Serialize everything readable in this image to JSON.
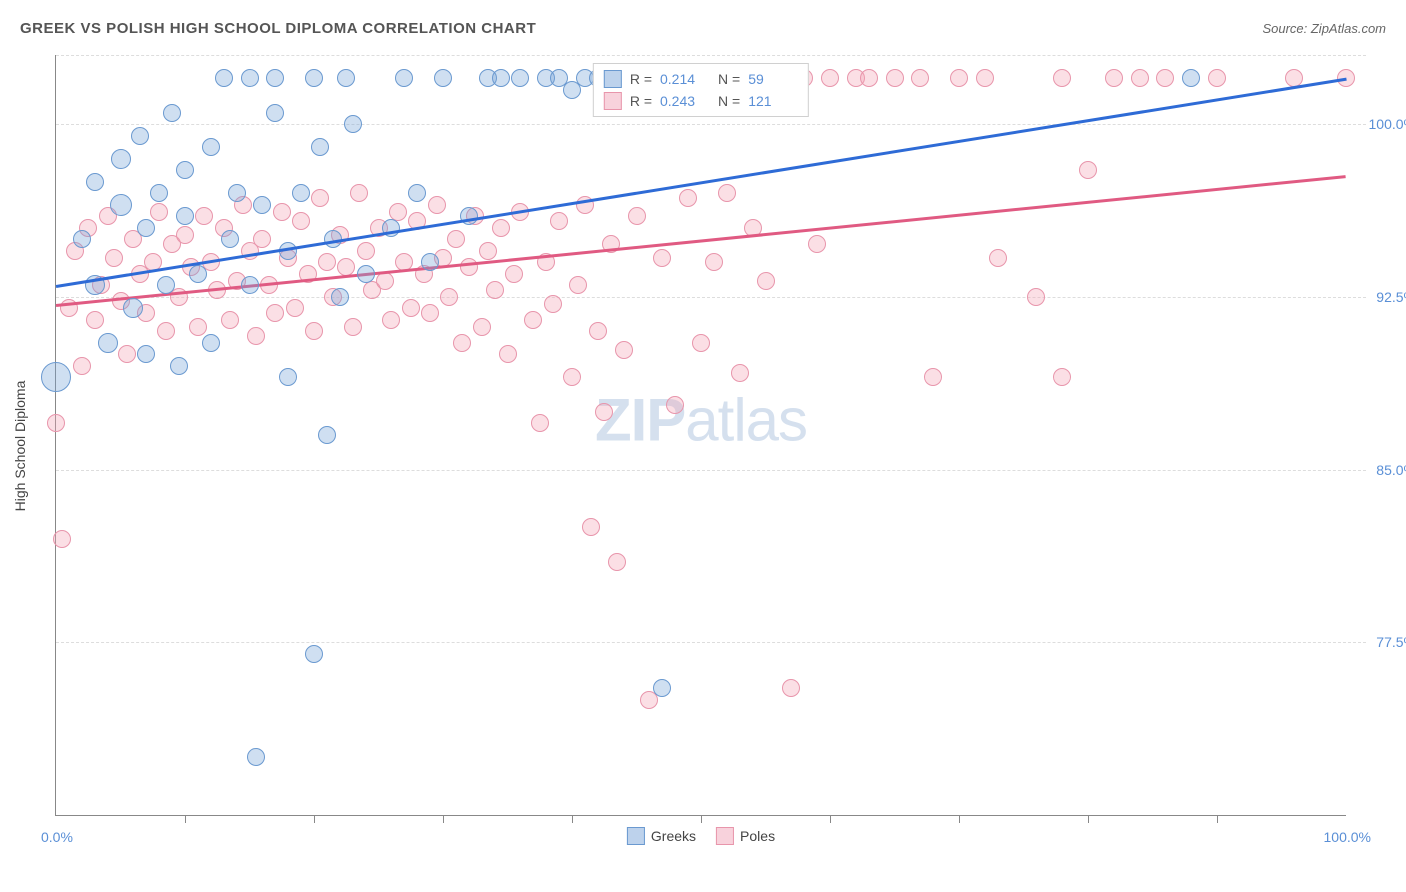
{
  "title": "GREEK VS POLISH HIGH SCHOOL DIPLOMA CORRELATION CHART",
  "source": "Source: ZipAtlas.com",
  "ylabel": "High School Diploma",
  "watermark_a": "ZIP",
  "watermark_b": "atlas",
  "xlim": [
    0,
    100
  ],
  "ylim": [
    70,
    103
  ],
  "x_axis_label_min": "0.0%",
  "x_axis_label_max": "100.0%",
  "y_ticks": [
    {
      "v": 77.5,
      "label": "77.5%"
    },
    {
      "v": 85.0,
      "label": "85.0%"
    },
    {
      "v": 92.5,
      "label": "92.5%"
    },
    {
      "v": 100.0,
      "label": "100.0%"
    }
  ],
  "x_tick_positions": [
    10,
    20,
    30,
    40,
    50,
    60,
    70,
    80,
    90
  ],
  "background_color": "#ffffff",
  "grid_color": "#dddddd",
  "axis_color": "#888888",
  "label_color": "#5a8fd6",
  "series": {
    "greeks": {
      "label": "Greeks",
      "fill": "rgba(118,162,216,0.35)",
      "stroke": "#6a99d0",
      "swatch_fill": "#bdd2ec",
      "swatch_stroke": "#6a99d0",
      "R": "0.214",
      "N": "59",
      "trend": {
        "x1": 0,
        "y1": 93.0,
        "x2": 100,
        "y2": 102.0,
        "color": "#2e6bd6",
        "width": 2.5
      },
      "points": [
        {
          "x": 0,
          "y": 89,
          "r": 14
        },
        {
          "x": 2,
          "y": 95,
          "r": 8
        },
        {
          "x": 3,
          "y": 93,
          "r": 9
        },
        {
          "x": 3,
          "y": 97.5,
          "r": 8
        },
        {
          "x": 4,
          "y": 90.5,
          "r": 9
        },
        {
          "x": 5,
          "y": 96.5,
          "r": 10
        },
        {
          "x": 5,
          "y": 98.5,
          "r": 9
        },
        {
          "x": 6,
          "y": 92,
          "r": 9
        },
        {
          "x": 6.5,
          "y": 99.5,
          "r": 8
        },
        {
          "x": 7,
          "y": 95.5,
          "r": 8
        },
        {
          "x": 7,
          "y": 90,
          "r": 8
        },
        {
          "x": 8,
          "y": 97,
          "r": 8
        },
        {
          "x": 8.5,
          "y": 93,
          "r": 8
        },
        {
          "x": 9,
          "y": 100.5,
          "r": 8
        },
        {
          "x": 9.5,
          "y": 89.5,
          "r": 8
        },
        {
          "x": 10,
          "y": 96,
          "r": 8
        },
        {
          "x": 10,
          "y": 98,
          "r": 8
        },
        {
          "x": 11,
          "y": 93.5,
          "r": 8
        },
        {
          "x": 12,
          "y": 99,
          "r": 8
        },
        {
          "x": 12,
          "y": 90.5,
          "r": 8
        },
        {
          "x": 13,
          "y": 102,
          "r": 8
        },
        {
          "x": 13.5,
          "y": 95,
          "r": 8
        },
        {
          "x": 14,
          "y": 97,
          "r": 8
        },
        {
          "x": 15,
          "y": 102,
          "r": 8
        },
        {
          "x": 15,
          "y": 93,
          "r": 8
        },
        {
          "x": 15.5,
          "y": 72.5,
          "r": 8
        },
        {
          "x": 16,
          "y": 96.5,
          "r": 8
        },
        {
          "x": 17,
          "y": 102,
          "r": 8
        },
        {
          "x": 17,
          "y": 100.5,
          "r": 8
        },
        {
          "x": 18,
          "y": 94.5,
          "r": 8
        },
        {
          "x": 18,
          "y": 89,
          "r": 8
        },
        {
          "x": 19,
          "y": 97,
          "r": 8
        },
        {
          "x": 20,
          "y": 102,
          "r": 8
        },
        {
          "x": 20.5,
          "y": 99,
          "r": 8
        },
        {
          "x": 20,
          "y": 77,
          "r": 8
        },
        {
          "x": 21,
          "y": 86.5,
          "r": 8
        },
        {
          "x": 21.5,
          "y": 95,
          "r": 8
        },
        {
          "x": 22,
          "y": 92.5,
          "r": 8
        },
        {
          "x": 22.5,
          "y": 102,
          "r": 8
        },
        {
          "x": 23,
          "y": 100,
          "r": 8
        },
        {
          "x": 24,
          "y": 93.5,
          "r": 8
        },
        {
          "x": 26,
          "y": 95.5,
          "r": 8
        },
        {
          "x": 27,
          "y": 102,
          "r": 8
        },
        {
          "x": 28,
          "y": 97,
          "r": 8
        },
        {
          "x": 29,
          "y": 94,
          "r": 8
        },
        {
          "x": 30,
          "y": 102,
          "r": 8
        },
        {
          "x": 32,
          "y": 96,
          "r": 8
        },
        {
          "x": 33.5,
          "y": 102,
          "r": 8
        },
        {
          "x": 34.5,
          "y": 102,
          "r": 8
        },
        {
          "x": 36,
          "y": 102,
          "r": 8
        },
        {
          "x": 38,
          "y": 102,
          "r": 8
        },
        {
          "x": 39,
          "y": 102,
          "r": 8
        },
        {
          "x": 40,
          "y": 101.5,
          "r": 8
        },
        {
          "x": 41,
          "y": 102,
          "r": 8
        },
        {
          "x": 42,
          "y": 102,
          "r": 8
        },
        {
          "x": 44,
          "y": 101.8,
          "r": 8
        },
        {
          "x": 47,
          "y": 75.5,
          "r": 8
        },
        {
          "x": 88,
          "y": 102,
          "r": 8
        }
      ]
    },
    "poles": {
      "label": "Poles",
      "fill": "rgba(243,162,181,0.35)",
      "stroke": "#e895ab",
      "swatch_fill": "#f8d2dc",
      "swatch_stroke": "#e895ab",
      "R": "0.243",
      "N": "121",
      "trend": {
        "x1": 0,
        "y1": 92.2,
        "x2": 100,
        "y2": 97.8,
        "color": "#e05a82",
        "width": 2.5
      },
      "points": [
        {
          "x": 0,
          "y": 87,
          "r": 8
        },
        {
          "x": 0.5,
          "y": 82,
          "r": 8
        },
        {
          "x": 1,
          "y": 92,
          "r": 8
        },
        {
          "x": 1.5,
          "y": 94.5,
          "r": 8
        },
        {
          "x": 2,
          "y": 89.5,
          "r": 8
        },
        {
          "x": 2.5,
          "y": 95.5,
          "r": 8
        },
        {
          "x": 3,
          "y": 91.5,
          "r": 8
        },
        {
          "x": 3.5,
          "y": 93,
          "r": 8
        },
        {
          "x": 4,
          "y": 96,
          "r": 8
        },
        {
          "x": 4.5,
          "y": 94.2,
          "r": 8
        },
        {
          "x": 5,
          "y": 92.3,
          "r": 8
        },
        {
          "x": 5.5,
          "y": 90,
          "r": 8
        },
        {
          "x": 6,
          "y": 95,
          "r": 8
        },
        {
          "x": 6.5,
          "y": 93.5,
          "r": 8
        },
        {
          "x": 7,
          "y": 91.8,
          "r": 8
        },
        {
          "x": 7.5,
          "y": 94,
          "r": 8
        },
        {
          "x": 8,
          "y": 96.2,
          "r": 8
        },
        {
          "x": 8.5,
          "y": 91,
          "r": 8
        },
        {
          "x": 9,
          "y": 94.8,
          "r": 8
        },
        {
          "x": 9.5,
          "y": 92.5,
          "r": 8
        },
        {
          "x": 10,
          "y": 95.2,
          "r": 8
        },
        {
          "x": 10.5,
          "y": 93.8,
          "r": 8
        },
        {
          "x": 11,
          "y": 91.2,
          "r": 8
        },
        {
          "x": 11.5,
          "y": 96,
          "r": 8
        },
        {
          "x": 12,
          "y": 94,
          "r": 8
        },
        {
          "x": 12.5,
          "y": 92.8,
          "r": 8
        },
        {
          "x": 13,
          "y": 95.5,
          "r": 8
        },
        {
          "x": 13.5,
          "y": 91.5,
          "r": 8
        },
        {
          "x": 14,
          "y": 93.2,
          "r": 8
        },
        {
          "x": 14.5,
          "y": 96.5,
          "r": 8
        },
        {
          "x": 15,
          "y": 94.5,
          "r": 8
        },
        {
          "x": 15.5,
          "y": 90.8,
          "r": 8
        },
        {
          "x": 16,
          "y": 95,
          "r": 8
        },
        {
          "x": 16.5,
          "y": 93,
          "r": 8
        },
        {
          "x": 17,
          "y": 91.8,
          "r": 8
        },
        {
          "x": 17.5,
          "y": 96.2,
          "r": 8
        },
        {
          "x": 18,
          "y": 94.2,
          "r": 8
        },
        {
          "x": 18.5,
          "y": 92,
          "r": 8
        },
        {
          "x": 19,
          "y": 95.8,
          "r": 8
        },
        {
          "x": 19.5,
          "y": 93.5,
          "r": 8
        },
        {
          "x": 20,
          "y": 91,
          "r": 8
        },
        {
          "x": 20.5,
          "y": 96.8,
          "r": 8
        },
        {
          "x": 21,
          "y": 94,
          "r": 8
        },
        {
          "x": 21.5,
          "y": 92.5,
          "r": 8
        },
        {
          "x": 22,
          "y": 95.2,
          "r": 8
        },
        {
          "x": 22.5,
          "y": 93.8,
          "r": 8
        },
        {
          "x": 23,
          "y": 91.2,
          "r": 8
        },
        {
          "x": 23.5,
          "y": 97,
          "r": 8
        },
        {
          "x": 24,
          "y": 94.5,
          "r": 8
        },
        {
          "x": 24.5,
          "y": 92.8,
          "r": 8
        },
        {
          "x": 25,
          "y": 95.5,
          "r": 8
        },
        {
          "x": 25.5,
          "y": 93.2,
          "r": 8
        },
        {
          "x": 26,
          "y": 91.5,
          "r": 8
        },
        {
          "x": 26.5,
          "y": 96.2,
          "r": 8
        },
        {
          "x": 27,
          "y": 94,
          "r": 8
        },
        {
          "x": 27.5,
          "y": 92,
          "r": 8
        },
        {
          "x": 28,
          "y": 95.8,
          "r": 8
        },
        {
          "x": 28.5,
          "y": 93.5,
          "r": 8
        },
        {
          "x": 29,
          "y": 91.8,
          "r": 8
        },
        {
          "x": 29.5,
          "y": 96.5,
          "r": 8
        },
        {
          "x": 30,
          "y": 94.2,
          "r": 8
        },
        {
          "x": 30.5,
          "y": 92.5,
          "r": 8
        },
        {
          "x": 31,
          "y": 95,
          "r": 8
        },
        {
          "x": 31.5,
          "y": 90.5,
          "r": 8
        },
        {
          "x": 32,
          "y": 93.8,
          "r": 8
        },
        {
          "x": 32.5,
          "y": 96,
          "r": 8
        },
        {
          "x": 33,
          "y": 91.2,
          "r": 8
        },
        {
          "x": 33.5,
          "y": 94.5,
          "r": 8
        },
        {
          "x": 34,
          "y": 92.8,
          "r": 8
        },
        {
          "x": 34.5,
          "y": 95.5,
          "r": 8
        },
        {
          "x": 35,
          "y": 90,
          "r": 8
        },
        {
          "x": 35.5,
          "y": 93.5,
          "r": 8
        },
        {
          "x": 36,
          "y": 96.2,
          "r": 8
        },
        {
          "x": 37,
          "y": 91.5,
          "r": 8
        },
        {
          "x": 37.5,
          "y": 87,
          "r": 8
        },
        {
          "x": 38,
          "y": 94,
          "r": 8
        },
        {
          "x": 38.5,
          "y": 92.2,
          "r": 8
        },
        {
          "x": 39,
          "y": 95.8,
          "r": 8
        },
        {
          "x": 40,
          "y": 89,
          "r": 8
        },
        {
          "x": 40.5,
          "y": 93,
          "r": 8
        },
        {
          "x": 41,
          "y": 96.5,
          "r": 8
        },
        {
          "x": 41.5,
          "y": 82.5,
          "r": 8
        },
        {
          "x": 42,
          "y": 91,
          "r": 8
        },
        {
          "x": 42.5,
          "y": 87.5,
          "r": 8
        },
        {
          "x": 43,
          "y": 94.8,
          "r": 8
        },
        {
          "x": 43.5,
          "y": 81,
          "r": 8
        },
        {
          "x": 44,
          "y": 90.2,
          "r": 8
        },
        {
          "x": 45,
          "y": 96,
          "r": 8
        },
        {
          "x": 46,
          "y": 75,
          "r": 8
        },
        {
          "x": 47,
          "y": 94.2,
          "r": 8
        },
        {
          "x": 48,
          "y": 87.8,
          "r": 8
        },
        {
          "x": 49,
          "y": 96.8,
          "r": 8
        },
        {
          "x": 50,
          "y": 90.5,
          "r": 8
        },
        {
          "x": 51,
          "y": 94,
          "r": 8
        },
        {
          "x": 52,
          "y": 97,
          "r": 8
        },
        {
          "x": 53,
          "y": 89.2,
          "r": 8
        },
        {
          "x": 54,
          "y": 95.5,
          "r": 8
        },
        {
          "x": 55,
          "y": 93.2,
          "r": 8
        },
        {
          "x": 56,
          "y": 102,
          "r": 8
        },
        {
          "x": 57,
          "y": 75.5,
          "r": 8
        },
        {
          "x": 58,
          "y": 102,
          "r": 8
        },
        {
          "x": 59,
          "y": 94.8,
          "r": 8
        },
        {
          "x": 60,
          "y": 102,
          "r": 8
        },
        {
          "x": 62,
          "y": 102,
          "r": 8
        },
        {
          "x": 63,
          "y": 102,
          "r": 8
        },
        {
          "x": 65,
          "y": 102,
          "r": 8
        },
        {
          "x": 67,
          "y": 102,
          "r": 8
        },
        {
          "x": 68,
          "y": 89,
          "r": 8
        },
        {
          "x": 70,
          "y": 102,
          "r": 8
        },
        {
          "x": 72,
          "y": 102,
          "r": 8
        },
        {
          "x": 73,
          "y": 94.2,
          "r": 8
        },
        {
          "x": 76,
          "y": 92.5,
          "r": 8
        },
        {
          "x": 78,
          "y": 102,
          "r": 8
        },
        {
          "x": 78,
          "y": 89,
          "r": 8
        },
        {
          "x": 80,
          "y": 98,
          "r": 8
        },
        {
          "x": 82,
          "y": 102,
          "r": 8
        },
        {
          "x": 84,
          "y": 102,
          "r": 8
        },
        {
          "x": 86,
          "y": 102,
          "r": 8
        },
        {
          "x": 90,
          "y": 102,
          "r": 8
        },
        {
          "x": 96,
          "y": 102,
          "r": 8
        },
        {
          "x": 100,
          "y": 102,
          "r": 8
        }
      ]
    }
  },
  "legend_top_R_label": "R =",
  "legend_top_N_label": "N ="
}
